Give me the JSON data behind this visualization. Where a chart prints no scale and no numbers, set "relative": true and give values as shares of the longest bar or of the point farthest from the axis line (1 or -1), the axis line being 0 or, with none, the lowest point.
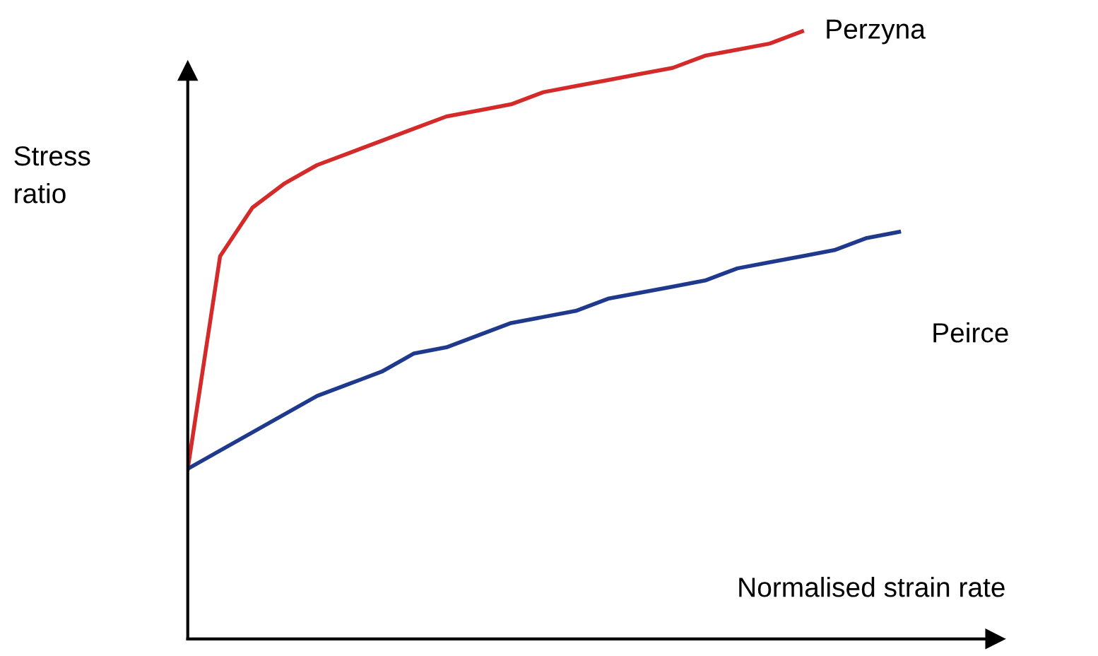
{
  "chart_data": {
    "type": "line",
    "relative": true,
    "xlabel": "Normalised strain rate",
    "ylabel": "Stress\nratio",
    "legend": false,
    "marker": "none",
    "line_style": "solid",
    "categories": [
      null,
      null,
      null,
      null,
      null,
      null,
      null,
      null,
      null,
      null,
      null,
      null,
      null,
      null,
      null,
      null,
      null,
      null,
      null,
      null,
      null,
      null,
      null
    ],
    "series": [
      {
        "name": "Perzyna",
        "color": "#d42a2a",
        "values": [
          0.28,
          0.63,
          0.71,
          0.75,
          0.78,
          0.8,
          0.82,
          0.84,
          0.86,
          0.87,
          0.88,
          0.9,
          0.91,
          0.92,
          0.93,
          0.94,
          0.96,
          0.97,
          0.98,
          1,
          null,
          null,
          null
        ]
      },
      {
        "name": "Peirce",
        "color": "#1f3a8c",
        "values": [
          0.28,
          0.31,
          0.34,
          0.37,
          0.4,
          0.42,
          0.44,
          0.47,
          0.48,
          0.5,
          0.52,
          0.53,
          0.54,
          0.56,
          0.57,
          0.58,
          0.59,
          0.61,
          0.62,
          0.63,
          0.64,
          0.66,
          0.67
        ]
      }
    ]
  }
}
